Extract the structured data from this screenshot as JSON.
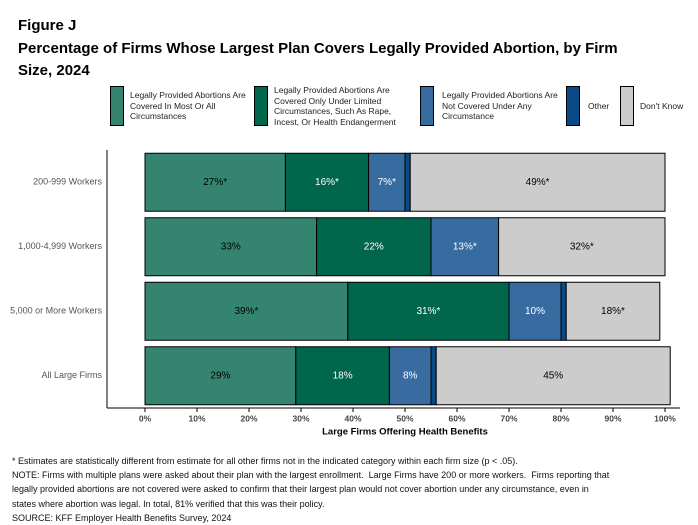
{
  "chart_data": {
    "type": "stacked-bar-horizontal",
    "figure_label": "Figure J",
    "title": "Percentage of Firms Whose Largest Plan Covers Legally Provided Abortion, by Firm Size, 2024",
    "categories": [
      "200-999 Workers",
      "1,000-4,999 Workers",
      "5,000 or More Workers",
      "All Large Firms"
    ],
    "series": [
      {
        "name": "Legally Provided Abortions Are Covered In Most Or All Circumstances",
        "color": "#358470",
        "label_color": "#000000",
        "values": [
          27,
          33,
          39,
          29
        ],
        "value_labels": [
          "27%*",
          "33%",
          "39%*",
          "29%"
        ]
      },
      {
        "name": "Legally Provided Abortions Are Covered Only Under Limited Circumstances, Such As Rape, Incest, Or Health Endangerment",
        "color": "#00664c",
        "label_color": "#ffffff",
        "values": [
          16,
          22,
          31,
          18
        ],
        "value_labels": [
          "16%*",
          "22%",
          "31%*",
          "18%"
        ]
      },
      {
        "name": "Legally Provided Abortions Are Not Covered Under Any Circumstance",
        "color": "#386ca0",
        "label_color": "#ffffff",
        "values": [
          7,
          13,
          10,
          8
        ],
        "value_labels": [
          "7%*",
          "13%*",
          "10%",
          "8%"
        ]
      },
      {
        "name": "Other",
        "color": "#0a4a86",
        "label_color": "#ffffff",
        "values": [
          1,
          0,
          1,
          1
        ],
        "value_labels": [
          null,
          null,
          null,
          null
        ]
      },
      {
        "name": "Don't Know",
        "color": "#cccccc",
        "label_color": "#000000",
        "values": [
          49,
          32,
          18,
          45
        ],
        "value_labels": [
          "49%*",
          "32%*",
          "18%*",
          "45%"
        ]
      }
    ],
    "xlim": [
      0,
      100
    ],
    "xticks": [
      {
        "value": 0,
        "label": "0%"
      },
      {
        "value": 10,
        "label": "10%"
      },
      {
        "value": 20,
        "label": "20%"
      },
      {
        "value": 30,
        "label": "30%"
      },
      {
        "value": 40,
        "label": "40%"
      },
      {
        "value": 50,
        "label": "50%"
      },
      {
        "value": 60,
        "label": "60%"
      },
      {
        "value": 70,
        "label": "70%"
      },
      {
        "value": 80,
        "label": "80%"
      },
      {
        "value": 90,
        "label": "90%"
      },
      {
        "value": 100,
        "label": "100%"
      }
    ],
    "x_label": "Large Firms Offering Health Benefits",
    "notes": [
      "* Estimates are statistically different from estimate for all other firms not in the indicated category within each firm size (p < .05).",
      "NOTE: Firms with multiple plans were asked about their plan with the largest enrollment.  Large Firms have 200 or more workers.  Firms reporting that",
      "legally provided abortions are not covered were asked to confirm that their largest plan would not cover abortion under any circumstance, even in",
      "states where abortion was legal. In total, 81% verified that this was their policy.",
      "SOURCE: KFF Employer Health Benefits Survey, 2024"
    ]
  }
}
